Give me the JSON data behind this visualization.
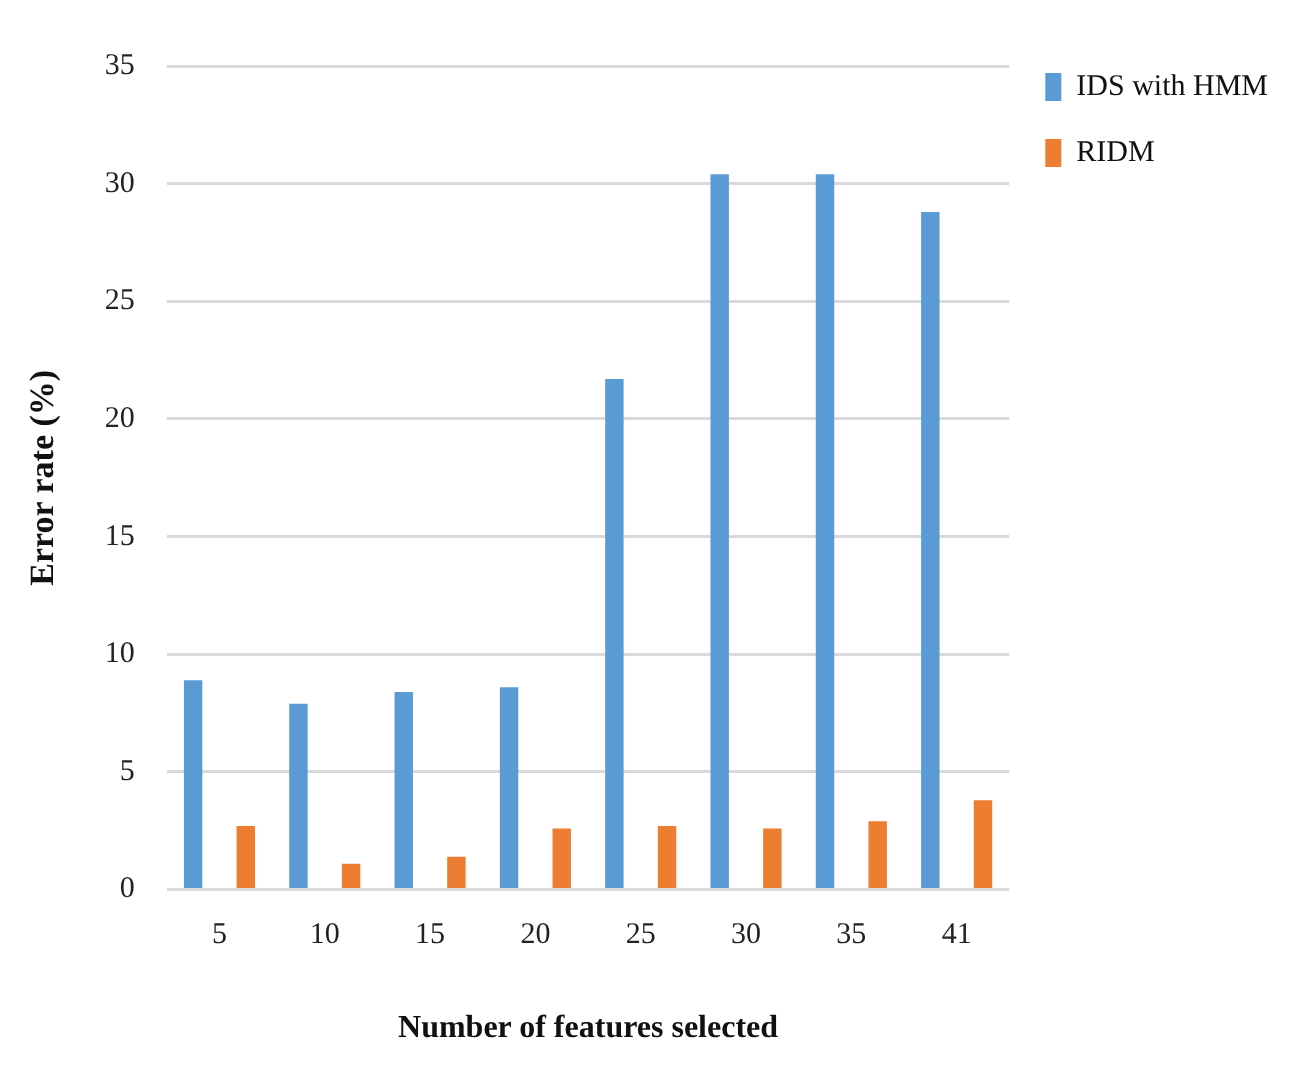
{
  "chart_data": {
    "type": "bar",
    "xlabel": "Number of features selected",
    "ylabel": "Error rate (%)",
    "categories": [
      "5",
      "10",
      "15",
      "20",
      "25",
      "30",
      "35",
      "41"
    ],
    "series": [
      {
        "name": "IDS with HMM",
        "color": "#5b9bd5",
        "values": [
          8.9,
          7.9,
          8.4,
          8.6,
          21.7,
          30.4,
          30.4,
          28.8
        ]
      },
      {
        "name": "RIDM",
        "color": "#ed7d31",
        "values": [
          2.7,
          1.1,
          1.4,
          2.6,
          2.7,
          2.6,
          2.9,
          3.8
        ]
      }
    ],
    "ylim": [
      0,
      35
    ],
    "yticks": [
      0,
      5,
      10,
      15,
      20,
      25,
      30,
      35
    ],
    "grid": "y",
    "legend": "right"
  }
}
